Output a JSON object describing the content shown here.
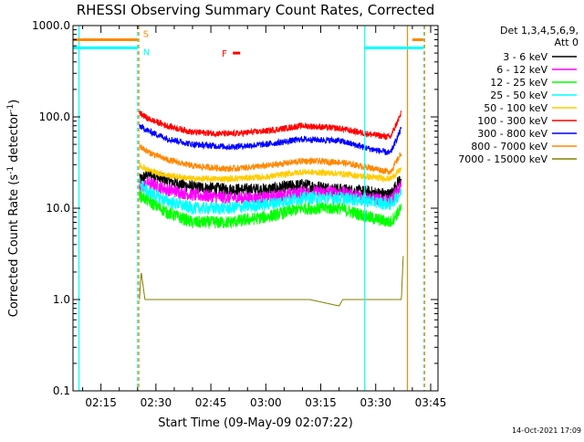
{
  "chart_data": {
    "type": "line",
    "title": "RHESSI Observing Summary Count Rates, Corrected",
    "xlabel": "Start Time (09-May-09 02:07:22)",
    "ylabel": "Corrected Count Rate (s-1 detector-1)",
    "ylabel_parts": {
      "main": "Corrected Count Rate (s",
      "sup1": "-1",
      "mid": " detector",
      "sup2": "-1",
      "end": ")"
    },
    "footer": "14-Oct-2021 17:09",
    "yscale": "log",
    "ylim": [
      0.1,
      1000
    ],
    "xlim": [
      "02:07:22",
      "03:47:00"
    ],
    "x_ticks": [
      "02:15",
      "02:30",
      "02:45",
      "03:00",
      "03:15",
      "03:30",
      "03:45"
    ],
    "y_ticks": [
      "0.1",
      "1.0",
      "10.0",
      "100.0",
      "1000.0"
    ],
    "legend_header": [
      "Det 1,3,4,5,6,9,",
      "Att 0"
    ],
    "series": [
      {
        "name": "3 - 6 keV",
        "color": "#000000",
        "x": [
          "02:25:30",
          "02:28",
          "02:33",
          "02:40",
          "02:50",
          "03:00",
          "03:10",
          "03:20",
          "03:28",
          "03:34",
          "03:37"
        ],
        "values": [
          20,
          24,
          20,
          17,
          16,
          16,
          18,
          16,
          15,
          14,
          22
        ]
      },
      {
        "name": "6 - 12 keV",
        "color": "#ff00ff",
        "x": [
          "02:25:30",
          "02:28",
          "02:33",
          "02:40",
          "02:50",
          "03:00",
          "03:10",
          "03:20",
          "03:28",
          "03:34",
          "03:37"
        ],
        "values": [
          16,
          19,
          16,
          14,
          13,
          13,
          15,
          15,
          13,
          12,
          18
        ]
      },
      {
        "name": "12 - 25 keV",
        "color": "#00ff00",
        "x": [
          "02:25:30",
          "02:28",
          "02:33",
          "02:40",
          "02:50",
          "03:00",
          "03:10",
          "03:20",
          "03:28",
          "03:34",
          "03:37"
        ],
        "values": [
          14,
          12,
          9,
          7,
          7,
          8,
          10,
          10,
          8,
          7,
          10
        ]
      },
      {
        "name": "25 - 50 keV",
        "color": "#00ffff",
        "x": [
          "02:25:30",
          "02:28",
          "02:33",
          "02:40",
          "02:50",
          "03:00",
          "03:10",
          "03:20",
          "03:28",
          "03:34",
          "03:37"
        ],
        "values": [
          19,
          15,
          12,
          10,
          10,
          11,
          13,
          13,
          12,
          11,
          15
        ]
      },
      {
        "name": "50 - 100 keV",
        "color": "#ffcc00",
        "x": [
          "02:25:30",
          "02:28",
          "02:33",
          "02:40",
          "02:50",
          "03:00",
          "03:10",
          "03:20",
          "03:28",
          "03:34",
          "03:37"
        ],
        "values": [
          30,
          26,
          23,
          21,
          21,
          22,
          25,
          24,
          22,
          21,
          27
        ]
      },
      {
        "name": "100 - 300 keV",
        "color": "#ff0000",
        "x": [
          "02:25:30",
          "02:28",
          "02:33",
          "02:40",
          "02:50",
          "03:00",
          "03:10",
          "03:20",
          "03:28",
          "03:34",
          "03:37"
        ],
        "values": [
          110,
          95,
          80,
          68,
          65,
          70,
          80,
          75,
          65,
          60,
          110
        ]
      },
      {
        "name": "300 - 800 keV",
        "color": "#0000ff",
        "x": [
          "02:25:30",
          "02:28",
          "02:33",
          "02:40",
          "02:50",
          "03:00",
          "03:10",
          "03:20",
          "03:28",
          "03:34",
          "03:37"
        ],
        "values": [
          80,
          70,
          58,
          50,
          47,
          50,
          57,
          55,
          45,
          40,
          75
        ]
      },
      {
        "name": "800 - 7000 keV",
        "color": "#ff8800",
        "x": [
          "02:25:30",
          "02:28",
          "02:33",
          "02:40",
          "02:50",
          "03:00",
          "03:10",
          "03:20",
          "03:28",
          "03:34",
          "03:37"
        ],
        "values": [
          48,
          41,
          34,
          29,
          27,
          29,
          33,
          32,
          28,
          25,
          40
        ]
      },
      {
        "name": "7000 - 15000 keV",
        "color": "#808000",
        "x": [
          "02:25:30",
          "02:26",
          "02:27",
          "02:33",
          "02:50",
          "03:05",
          "03:12",
          "03:20",
          "03:21",
          "03:37",
          "03:37:30"
        ],
        "values": [
          1.0,
          2.0,
          1.0,
          1.0,
          1.0,
          1.0,
          1.0,
          0.85,
          1.0,
          1.0,
          3.0
        ]
      }
    ],
    "flags": [
      {
        "label": "S",
        "color": "#ff8800",
        "level": 700,
        "segments": [
          [
            "02:07:22",
            "02:25:00"
          ],
          [
            "03:40:00",
            "03:43:00"
          ]
        ]
      },
      {
        "label": "N",
        "color": "#00ffff",
        "level": 570,
        "segments": [
          [
            "02:07:22",
            "02:25:00"
          ],
          [
            "03:27:00",
            "03:43:00"
          ]
        ]
      },
      {
        "label": "F",
        "color": "#ff0000",
        "level": 500,
        "segments": [
          [
            "02:51:00",
            "02:53:00"
          ]
        ]
      }
    ],
    "vertical_markers": [
      {
        "time": "02:09:00",
        "color": "#00ffff",
        "style": "solid"
      },
      {
        "time": "02:25:00",
        "color": "#00ffff",
        "style": "dashed"
      },
      {
        "time": "02:25:20",
        "color": "#ff8800",
        "style": "dashed"
      },
      {
        "time": "03:27:00",
        "color": "#00ffff",
        "style": "solid"
      },
      {
        "time": "03:38:40",
        "color": "#ff8800",
        "style": "solid"
      },
      {
        "time": "03:43:10",
        "color": "#00ffff",
        "style": "dashed"
      },
      {
        "time": "03:43:20",
        "color": "#ff8800",
        "style": "dashed"
      }
    ]
  }
}
